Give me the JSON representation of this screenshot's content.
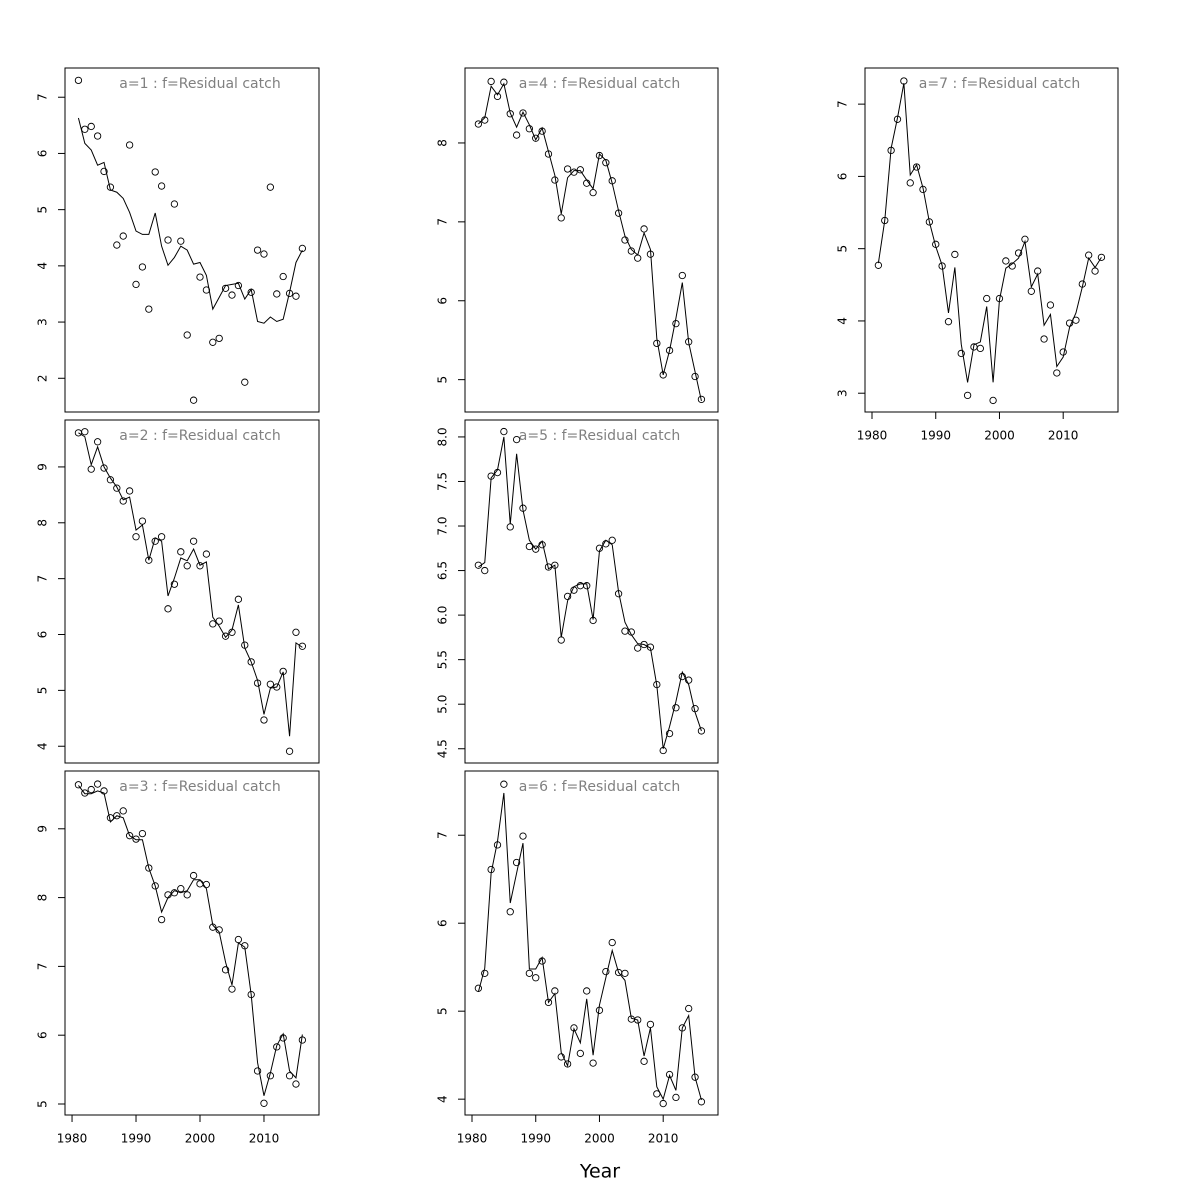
{
  "x_label": "Year",
  "chart_data": [
    {
      "type": "line",
      "title": "a=1 : f=Residual catch",
      "x": [
        1981,
        1982,
        1983,
        1984,
        1985,
        1986,
        1987,
        1988,
        1989,
        1990,
        1991,
        1992,
        1993,
        1994,
        1995,
        1996,
        1997,
        1998,
        1999,
        2000,
        2001,
        2002,
        2003,
        2004,
        2005,
        2006,
        2007,
        2008,
        2009,
        2010,
        2011,
        2012,
        2013,
        2014,
        2015,
        2016
      ],
      "xlim": [
        1978.9,
        2018.6
      ],
      "ylim": [
        1.4,
        7.52
      ],
      "yticks": [
        2,
        3,
        4,
        5,
        6,
        7
      ],
      "series": [
        {
          "style": "points",
          "color": "#000000",
          "values": [
            7.3,
            6.43,
            6.48,
            6.31,
            5.68,
            5.4,
            4.37,
            4.53,
            6.15,
            3.67,
            3.98,
            3.23,
            5.67,
            5.42,
            4.46,
            5.1,
            4.44,
            2.77,
            1.61,
            3.8,
            3.57,
            2.64,
            2.71,
            3.6,
            3.48,
            3.65,
            1.93,
            3.53,
            4.28,
            4.21,
            5.4,
            3.5,
            3.81,
            3.51,
            3.46,
            4.31
          ]
        },
        {
          "style": "line",
          "color": "#000000",
          "values": [
            6.63,
            6.18,
            6.06,
            5.79,
            5.84,
            5.35,
            5.31,
            5.2,
            4.95,
            4.62,
            4.56,
            4.56,
            4.94,
            4.35,
            4.01,
            4.15,
            4.35,
            4.28,
            4.03,
            4.06,
            3.83,
            3.23,
            3.44,
            3.65,
            3.67,
            3.69,
            3.41,
            3.58,
            3.01,
            2.98,
            3.09,
            3.01,
            3.05,
            3.53,
            4.06,
            4.28
          ]
        }
      ]
    },
    {
      "type": "line",
      "title": "a=2 : f=Residual catch",
      "x": [
        1981,
        1982,
        1983,
        1984,
        1985,
        1986,
        1987,
        1988,
        1989,
        1990,
        1991,
        1992,
        1993,
        1994,
        1995,
        1996,
        1997,
        1998,
        1999,
        2000,
        2001,
        2002,
        2003,
        2004,
        2005,
        2006,
        2007,
        2008,
        2009,
        2010,
        2011,
        2012,
        2013,
        2014,
        2015,
        2016
      ],
      "xlim": [
        1978.9,
        2018.6
      ],
      "ylim": [
        3.7,
        9.84
      ],
      "yticks": [
        4,
        5,
        6,
        7,
        8,
        9
      ],
      "series": [
        {
          "style": "points",
          "color": "#000000",
          "values": [
            9.61,
            9.63,
            8.96,
            9.45,
            8.98,
            8.77,
            8.62,
            8.39,
            8.57,
            7.75,
            8.03,
            7.33,
            7.67,
            7.75,
            6.46,
            6.9,
            7.48,
            7.23,
            7.67,
            7.23,
            7.44,
            6.19,
            6.24,
            5.97,
            6.04,
            6.63,
            5.81,
            5.51,
            5.13,
            4.47,
            5.11,
            5.06,
            5.34,
            3.91,
            6.04,
            5.79
          ]
        },
        {
          "style": "line",
          "color": "#000000",
          "values": [
            9.61,
            9.54,
            9.04,
            9.36,
            9.0,
            8.8,
            8.64,
            8.41,
            8.46,
            7.87,
            7.96,
            7.33,
            7.73,
            7.67,
            6.69,
            7.01,
            7.37,
            7.32,
            7.53,
            7.24,
            7.3,
            6.31,
            6.15,
            5.95,
            6.08,
            6.53,
            5.76,
            5.51,
            5.18,
            4.57,
            5.04,
            5.06,
            5.33,
            4.18,
            5.85,
            5.77
          ]
        }
      ]
    },
    {
      "type": "line",
      "title": "a=3 : f=Residual catch",
      "x": [
        1981,
        1982,
        1983,
        1984,
        1985,
        1986,
        1987,
        1988,
        1989,
        1990,
        1991,
        1992,
        1993,
        1994,
        1995,
        1996,
        1997,
        1998,
        1999,
        2000,
        2001,
        2002,
        2003,
        2004,
        2005,
        2006,
        2007,
        2008,
        2009,
        2010,
        2011,
        2012,
        2013,
        2014,
        2015,
        2016
      ],
      "xlim": [
        1978.9,
        2018.6
      ],
      "xticks": [
        1980,
        1990,
        2000,
        2010
      ],
      "ylim": [
        4.84,
        9.84
      ],
      "yticks": [
        5,
        6,
        7,
        8,
        9
      ],
      "series": [
        {
          "style": "points",
          "color": "#000000",
          "values": [
            9.64,
            9.52,
            9.57,
            9.65,
            9.55,
            9.16,
            9.19,
            9.26,
            8.9,
            8.85,
            8.93,
            8.43,
            8.17,
            7.68,
            8.04,
            8.07,
            8.13,
            8.04,
            8.32,
            8.2,
            8.19,
            7.57,
            7.53,
            6.95,
            6.67,
            7.39,
            7.3,
            6.59,
            5.48,
            5.01,
            5.41,
            5.83,
            5.96,
            5.41,
            5.29,
            5.93
          ]
        },
        {
          "style": "line",
          "color": "#000000",
          "values": [
            9.63,
            9.51,
            9.51,
            9.55,
            9.52,
            9.1,
            9.19,
            9.16,
            8.9,
            8.84,
            8.84,
            8.43,
            8.17,
            7.79,
            8.0,
            8.1,
            8.07,
            8.1,
            8.26,
            8.26,
            8.13,
            7.6,
            7.5,
            7.06,
            6.73,
            7.34,
            7.28,
            6.59,
            5.6,
            5.12,
            5.45,
            5.85,
            6.02,
            5.48,
            5.38,
            6.01
          ]
        }
      ]
    },
    {
      "type": "line",
      "title": "a=4 : f=Residual catch",
      "x": [
        1981,
        1982,
        1983,
        1984,
        1985,
        1986,
        1987,
        1988,
        1989,
        1990,
        1991,
        1992,
        1993,
        1994,
        1995,
        1996,
        1997,
        1998,
        1999,
        2000,
        2001,
        2002,
        2003,
        2004,
        2005,
        2006,
        2007,
        2008,
        2009,
        2010,
        2011,
        2012,
        2013,
        2014,
        2015,
        2016
      ],
      "xlim": [
        1978.9,
        2018.6
      ],
      "ylim": [
        4.59,
        8.95
      ],
      "yticks": [
        5,
        6,
        7,
        8
      ],
      "series": [
        {
          "style": "points",
          "color": "#000000",
          "values": [
            8.24,
            8.29,
            8.78,
            8.59,
            8.77,
            8.37,
            8.1,
            8.38,
            8.18,
            8.06,
            8.15,
            7.86,
            7.53,
            7.05,
            7.67,
            7.63,
            7.66,
            7.49,
            7.37,
            7.84,
            7.75,
            7.52,
            7.11,
            6.77,
            6.63,
            6.54,
            6.91,
            6.59,
            5.46,
            5.06,
            5.37,
            5.71,
            6.32,
            5.48,
            5.04,
            4.75
          ]
        },
        {
          "style": "line",
          "color": "#000000",
          "values": [
            8.24,
            8.32,
            8.72,
            8.61,
            8.75,
            8.38,
            8.2,
            8.39,
            8.23,
            8.04,
            8.19,
            7.89,
            7.59,
            7.1,
            7.56,
            7.65,
            7.65,
            7.53,
            7.42,
            7.86,
            7.78,
            7.49,
            7.14,
            6.82,
            6.65,
            6.58,
            6.86,
            6.65,
            5.52,
            5.06,
            5.37,
            5.78,
            6.23,
            5.47,
            5.1,
            4.73
          ]
        }
      ]
    },
    {
      "type": "line",
      "title": "a=5 : f=Residual catch",
      "x": [
        1981,
        1982,
        1983,
        1984,
        1985,
        1986,
        1987,
        1988,
        1989,
        1990,
        1991,
        1992,
        1993,
        1994,
        1995,
        1996,
        1997,
        1998,
        1999,
        2000,
        2001,
        2002,
        2003,
        2004,
        2005,
        2006,
        2007,
        2008,
        2009,
        2010,
        2011,
        2012,
        2013,
        2014,
        2015,
        2016
      ],
      "xlim": [
        1978.9,
        2018.6
      ],
      "ylim": [
        4.34,
        8.19
      ],
      "yticks": [
        4.5,
        {
          "value": 5,
          "label": "5.0"
        },
        5.5,
        {
          "value": 6,
          "label": "6.0"
        },
        6.5,
        {
          "value": 7,
          "label": "7.0"
        },
        7.5,
        {
          "value": 8,
          "label": "8.0"
        }
      ],
      "series": [
        {
          "style": "points",
          "color": "#000000",
          "values": [
            6.56,
            6.5,
            7.56,
            7.6,
            8.06,
            6.99,
            7.97,
            7.2,
            6.77,
            6.74,
            6.79,
            6.54,
            6.56,
            5.72,
            6.21,
            6.28,
            6.33,
            6.33,
            5.94,
            6.75,
            6.8,
            6.84,
            6.24,
            5.82,
            5.81,
            5.63,
            5.67,
            5.64,
            5.22,
            4.48,
            4.67,
            4.96,
            5.31,
            5.27,
            4.95,
            4.7
          ]
        },
        {
          "style": "line",
          "color": "#000000",
          "values": [
            6.54,
            6.59,
            7.54,
            7.63,
            8.0,
            7.02,
            7.81,
            7.18,
            6.84,
            6.74,
            6.83,
            6.52,
            6.56,
            5.75,
            6.16,
            6.32,
            6.35,
            6.35,
            5.95,
            6.72,
            6.84,
            6.79,
            6.26,
            5.92,
            5.78,
            5.68,
            5.67,
            5.63,
            5.21,
            4.5,
            4.75,
            5.03,
            5.36,
            5.22,
            4.91,
            4.7
          ]
        }
      ]
    },
    {
      "type": "line",
      "title": "a=6 : f=Residual catch",
      "x": [
        1981,
        1982,
        1983,
        1984,
        1985,
        1986,
        1987,
        1988,
        1989,
        1990,
        1991,
        1992,
        1993,
        1994,
        1995,
        1996,
        1997,
        1998,
        1999,
        2000,
        2001,
        2002,
        2003,
        2004,
        2005,
        2006,
        2007,
        2008,
        2009,
        2010,
        2011,
        2012,
        2013,
        2014,
        2015,
        2016
      ],
      "xlim": [
        1978.9,
        2018.6
      ],
      "xticks": [
        1980,
        1990,
        2000,
        2010
      ],
      "ylim": [
        3.82,
        7.73
      ],
      "yticks": [
        4,
        5,
        6,
        7
      ],
      "series": [
        {
          "style": "points",
          "color": "#000000",
          "values": [
            5.26,
            5.43,
            6.61,
            6.89,
            7.58,
            6.13,
            6.69,
            6.99,
            5.43,
            5.38,
            5.57,
            5.1,
            5.23,
            4.48,
            4.4,
            4.81,
            4.52,
            5.23,
            4.41,
            5.01,
            5.45,
            5.78,
            5.44,
            5.43,
            4.91,
            4.9,
            4.43,
            4.85,
            4.06,
            3.95,
            4.28,
            4.02,
            4.81,
            5.03,
            4.25,
            3.97
          ]
        },
        {
          "style": "line",
          "color": "#000000",
          "values": [
            5.22,
            5.49,
            6.57,
            6.93,
            7.48,
            6.23,
            6.57,
            6.91,
            5.48,
            5.48,
            5.61,
            5.1,
            5.2,
            4.53,
            4.38,
            4.8,
            4.64,
            5.14,
            4.5,
            5.07,
            5.38,
            5.69,
            5.44,
            5.35,
            4.92,
            4.9,
            4.49,
            4.81,
            4.14,
            4.0,
            4.27,
            4.1,
            4.81,
            4.95,
            4.25,
            3.99
          ]
        }
      ]
    },
    {
      "type": "line",
      "title": "a=7 : f=Residual catch",
      "x": [
        1981,
        1982,
        1983,
        1984,
        1985,
        1986,
        1987,
        1988,
        1989,
        1990,
        1991,
        1992,
        1993,
        1994,
        1995,
        1996,
        1997,
        1998,
        1999,
        2000,
        2001,
        2002,
        2003,
        2004,
        2005,
        2006,
        2007,
        2008,
        2009,
        2010,
        2011,
        2012,
        2013,
        2014,
        2015,
        2016
      ],
      "xlim": [
        1978.9,
        2018.6
      ],
      "xticks": [
        1980,
        1990,
        2000,
        2010
      ],
      "ylim": [
        2.74,
        7.5
      ],
      "yticks": [
        3,
        4,
        5,
        6,
        7
      ],
      "series": [
        {
          "style": "points",
          "color": "#000000",
          "values": [
            4.77,
            5.39,
            6.36,
            6.79,
            7.32,
            5.91,
            6.13,
            5.82,
            5.37,
            5.06,
            4.76,
            3.99,
            4.92,
            3.55,
            2.97,
            3.64,
            3.62,
            4.31,
            2.9,
            4.31,
            4.83,
            4.76,
            4.94,
            5.13,
            4.41,
            4.69,
            3.75,
            4.22,
            3.28,
            3.57,
            3.97,
            4.01,
            4.51,
            4.91,
            4.69,
            4.88
          ]
        },
        {
          "style": "line",
          "color": "#000000",
          "values": [
            4.8,
            5.39,
            6.39,
            6.81,
            7.29,
            6.02,
            6.16,
            5.84,
            5.37,
            5.03,
            4.77,
            4.11,
            4.74,
            3.68,
            3.15,
            3.67,
            3.71,
            4.2,
            3.15,
            4.29,
            4.73,
            4.79,
            4.87,
            5.1,
            4.47,
            4.65,
            3.94,
            4.09,
            3.37,
            3.5,
            3.91,
            4.11,
            4.47,
            4.87,
            4.74,
            4.88
          ]
        }
      ]
    }
  ]
}
